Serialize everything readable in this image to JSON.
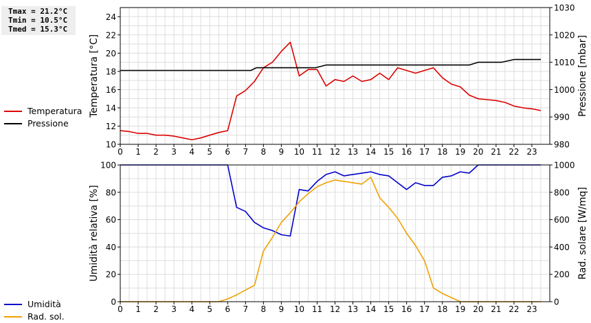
{
  "stats": {
    "tmax": "Tmax = 21.2°C",
    "tmin": "Tmin = 10.5°C",
    "tmed": "Tmed = 15.3°C"
  },
  "legend_top": [
    {
      "label": "Temperatura",
      "color": "#dd0000"
    },
    {
      "label": "Pressione",
      "color": "#000000"
    }
  ],
  "legend_bottom": [
    {
      "label": "Umidità",
      "color": "#0000cc"
    },
    {
      "label": "Rad. sol.",
      "color": "#f0a000"
    }
  ],
  "chart_data": [
    {
      "type": "line",
      "ylabel": "Temperatura [°C]",
      "y2label": "Pressione [mbar]",
      "ylim": [
        10,
        25
      ],
      "y2lim": [
        980,
        1030
      ],
      "yticks": [
        10,
        12,
        14,
        16,
        18,
        20,
        22,
        24
      ],
      "y2ticks": [
        980,
        990,
        1000,
        1010,
        1020,
        1030
      ],
      "xlim": [
        0,
        24
      ],
      "xticks": [
        "0",
        "1",
        "2",
        "3",
        "4",
        "5",
        "6",
        "7",
        "8",
        "9",
        "10",
        "11",
        "12",
        "13",
        "14",
        "15",
        "16",
        "17",
        "18",
        "19",
        "20",
        "21",
        "22",
        "23"
      ],
      "grid": true,
      "series": [
        {
          "name": "Temperatura",
          "axis": "left",
          "color": "#dd0000",
          "x": [
            0,
            0.5,
            1,
            1.5,
            2,
            2.5,
            3,
            3.5,
            4,
            4.5,
            5,
            5.5,
            6,
            6.5,
            7,
            7.5,
            8,
            8.5,
            9,
            9.5,
            10,
            10.5,
            11,
            11.5,
            12,
            12.5,
            13,
            13.5,
            14,
            14.5,
            15,
            15.5,
            16,
            16.5,
            17,
            17.5,
            18,
            18.5,
            19,
            19.5,
            20,
            20.5,
            21,
            21.5,
            22,
            22.5,
            23,
            23.5
          ],
          "y": [
            11.5,
            11.4,
            11.2,
            11.2,
            11.0,
            11.0,
            10.9,
            10.7,
            10.5,
            10.7,
            11.0,
            11.3,
            11.5,
            15.3,
            15.9,
            16.9,
            18.4,
            19.0,
            20.2,
            21.2,
            17.5,
            18.2,
            18.2,
            16.4,
            17.1,
            16.9,
            17.5,
            16.9,
            17.1,
            17.8,
            17.1,
            18.4,
            18.1,
            17.8,
            18.1,
            18.4,
            17.3,
            16.6,
            16.3,
            15.4,
            15.0,
            14.9,
            14.8,
            14.6,
            14.2,
            14.0,
            13.9,
            13.7
          ]
        },
        {
          "name": "Pressione",
          "axis": "right",
          "color": "#000000",
          "x": [
            0,
            7.3,
            7.6,
            10.9,
            11.5,
            19.5,
            20,
            21,
            21.3,
            22,
            23.5
          ],
          "y": [
            1007,
            1007,
            1008,
            1008,
            1009,
            1009,
            1010,
            1010,
            1010,
            1011,
            1011
          ]
        }
      ]
    },
    {
      "type": "line",
      "ylabel": "Umidità relativa [%]",
      "y2label": "Rad. solare [W/mq]",
      "ylim": [
        0,
        100
      ],
      "y2lim": [
        0,
        1000
      ],
      "yticks": [
        0,
        20,
        40,
        60,
        80,
        100
      ],
      "y2ticks": [
        0,
        200,
        400,
        600,
        800,
        1000
      ],
      "xlim": [
        0,
        24
      ],
      "xticks": [
        "0",
        "1",
        "2",
        "3",
        "4",
        "5",
        "6",
        "7",
        "8",
        "9",
        "10",
        "11",
        "12",
        "13",
        "14",
        "15",
        "16",
        "17",
        "18",
        "19",
        "20",
        "21",
        "22",
        "23"
      ],
      "grid": true,
      "series": [
        {
          "name": "Umidità",
          "axis": "left",
          "color": "#0000cc",
          "x": [
            0,
            6,
            6.5,
            7,
            7.5,
            8,
            8.5,
            9,
            9.5,
            10,
            10.5,
            11,
            11.5,
            12,
            12.5,
            13,
            13.5,
            14,
            14.5,
            15,
            15.5,
            16,
            16.5,
            17,
            17.5,
            18,
            18.5,
            19,
            19.5,
            20,
            23.5
          ],
          "y": [
            100,
            100,
            69,
            66,
            58,
            54,
            52,
            49,
            48,
            82,
            81,
            88,
            93,
            95,
            92,
            93,
            94,
            95,
            93,
            92,
            87,
            82,
            87,
            85,
            85,
            91,
            92,
            95,
            94,
            100,
            100
          ]
        },
        {
          "name": "Rad. sol.",
          "axis": "right",
          "color": "#f0a000",
          "x": [
            0,
            5.5,
            6,
            6.5,
            7,
            7.5,
            8,
            8.5,
            9,
            9.5,
            10,
            10.5,
            11,
            11.5,
            12,
            12.5,
            13,
            13.5,
            14,
            14.5,
            15,
            15.5,
            16,
            16.5,
            17,
            17.5,
            18,
            18.5,
            19,
            19.5,
            23.5
          ],
          "y": [
            0,
            0,
            20,
            50,
            85,
            120,
            370,
            470,
            580,
            650,
            730,
            790,
            840,
            870,
            890,
            880,
            870,
            860,
            910,
            760,
            690,
            610,
            500,
            410,
            300,
            100,
            60,
            30,
            0,
            0,
            0
          ]
        }
      ]
    }
  ]
}
